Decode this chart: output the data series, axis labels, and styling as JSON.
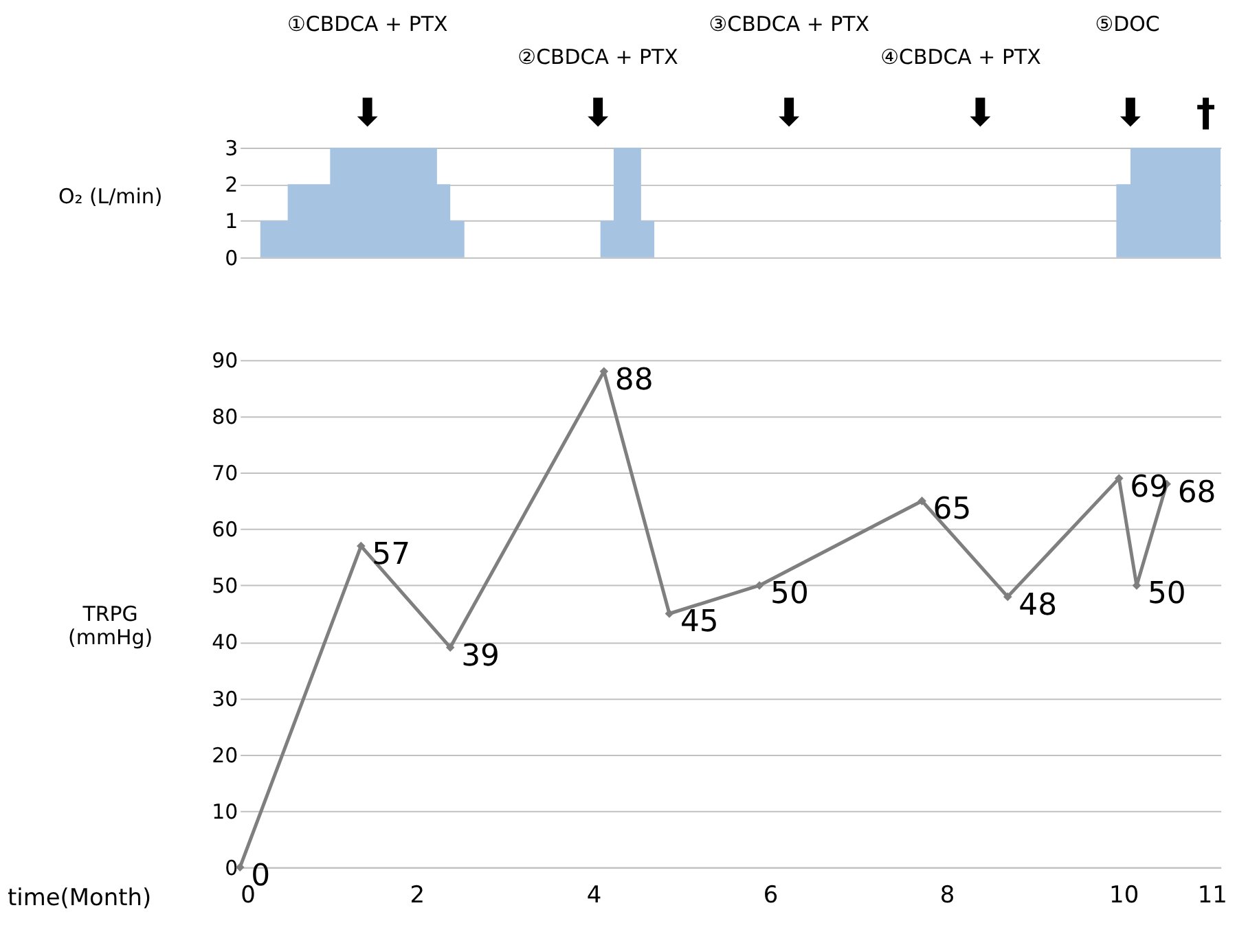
{
  "chart_data": [
    {
      "type": "area",
      "ylabel": "O₂ (L/min)",
      "x": [
        0.23,
        0.23,
        0.54,
        0.54,
        1.02,
        1.02,
        2.23,
        2.23,
        2.38,
        2.38,
        2.54,
        2.54,
        4.08,
        4.08,
        4.23,
        4.23,
        4.54,
        4.54,
        4.69,
        4.69,
        9.92,
        9.92,
        10.08,
        10.08,
        11.1,
        11.1
      ],
      "series": [
        {
          "color": "#a7c3e2",
          "values": [
            0,
            1,
            1,
            2,
            2,
            3,
            3,
            2,
            2,
            1,
            1,
            0,
            0,
            1,
            1,
            3,
            3,
            1,
            1,
            0,
            0,
            2,
            2,
            3,
            3,
            0
          ]
        }
      ],
      "xlim": [
        0,
        11.1
      ],
      "ylim": [
        0,
        3
      ],
      "yticks": [
        0,
        1,
        2,
        3
      ],
      "grid": "y",
      "tick_labels": "y",
      "annotations": [
        "①CBDCA + PTX",
        "②CBDCA + PTX",
        "③CBDCA + PTX",
        "④CBDCA + PTX",
        "⑤DOC",
        "⬇",
        "⬇",
        "⬇",
        "⬇",
        "⬇",
        "†"
      ]
    },
    {
      "type": "line",
      "ylabel": "TRPG\n(mmHg)",
      "xlabel": "time(Month)",
      "x": [
        0,
        1.37,
        2.38,
        4.12,
        4.86,
        5.88,
        7.72,
        8.69,
        9.95,
        10.15,
        10.49
      ],
      "series": [
        {
          "color": "#7f7f7f",
          "values": [
            0,
            57,
            39,
            88,
            45,
            50,
            65,
            48,
            69,
            50,
            68
          ]
        }
      ],
      "xlim": [
        0,
        11.1
      ],
      "xticks": [
        0,
        2,
        4,
        6,
        8,
        10,
        11
      ],
      "ylim": [
        0,
        90
      ],
      "yticks": [
        0,
        10,
        20,
        30,
        40,
        50,
        60,
        70,
        80,
        90
      ],
      "grid": "y",
      "marker": "diamond",
      "data_labels": true
    }
  ]
}
